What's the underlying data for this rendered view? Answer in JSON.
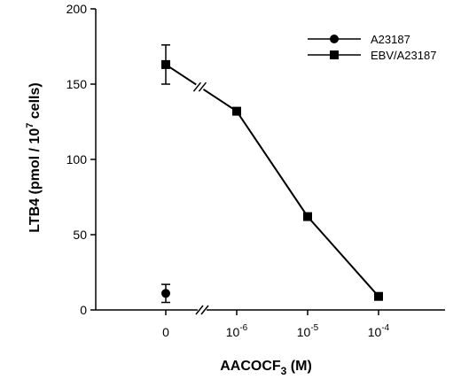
{
  "chart_data": {
    "type": "line",
    "xlabel": "AACOCF",
    "xlabel_sub": "3",
    "xlabel_suffix": " (M)",
    "ylabel": "LTB4 (pmol / 10",
    "ylabel_sup": "7",
    "ylabel_suffix": " cells)",
    "ylim": [
      0,
      200
    ],
    "yticks": [
      "0",
      "50",
      "100",
      "150",
      "200"
    ],
    "x_scale": "log with axis break",
    "x_categories": [
      {
        "base": "0",
        "exp": ""
      },
      {
        "base": "10",
        "exp": "-6"
      },
      {
        "base": "10",
        "exp": "-5"
      },
      {
        "base": "10",
        "exp": "-4"
      }
    ],
    "legend_position": "top-right",
    "series": [
      {
        "name": "A23187",
        "marker": "circle",
        "points": [
          {
            "x": "0",
            "y": 11,
            "err": 6
          }
        ]
      },
      {
        "name": "EBV/A23187",
        "marker": "square",
        "points": [
          {
            "x": "0",
            "y": 163,
            "err": 13
          },
          {
            "x": "1e-6",
            "y": 132,
            "err": 0
          },
          {
            "x": "1e-5",
            "y": 62,
            "err": 2
          },
          {
            "x": "1e-4",
            "y": 9,
            "err": 0
          }
        ]
      }
    ]
  }
}
